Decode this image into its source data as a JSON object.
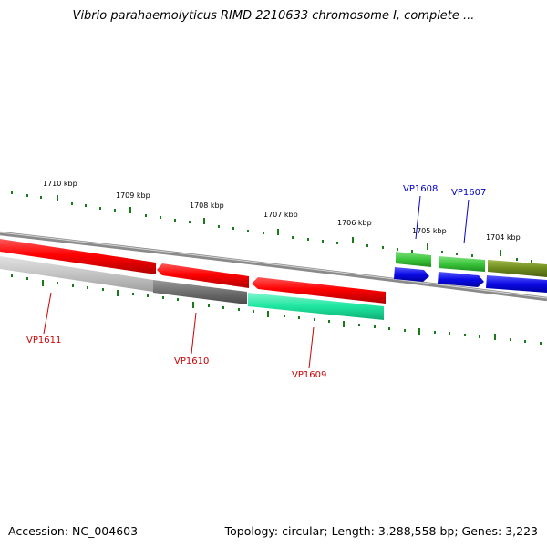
{
  "title": "Vibrio parahaemolyticus RIMD 2210633 chromosome I, complete ...",
  "footer": {
    "accession": "Accession: NC_004603",
    "topology": "Topology: circular; Length: 3,288,558 bp; Genes: 3,223"
  },
  "kbp_labels": [
    "1710 kbp",
    "1709 kbp",
    "1708 kbp",
    "1707 kbp",
    "1706 kbp",
    "1705 kbp",
    "1704 kbp"
  ],
  "genes": [
    {
      "label": "VP1611",
      "color": "#cc0000"
    },
    {
      "label": "VP1610",
      "color": "#cc0000"
    },
    {
      "label": "VP1609",
      "color": "#cc0000"
    },
    {
      "label": "VP1608",
      "color": "#0000cc"
    },
    {
      "label": "VP1607",
      "color": "#0000cc"
    }
  ],
  "colors": {
    "backbone": "#8c8c8c",
    "tick": "#1a7a1a",
    "red": "#ff0000",
    "green": "#3cc63c",
    "teal": "#1fe6a0",
    "blue": "#0a0ae6",
    "olive": "#6e8a1e",
    "gray_light": "#c8c8c8",
    "gray_dark": "#6e6e6e"
  }
}
